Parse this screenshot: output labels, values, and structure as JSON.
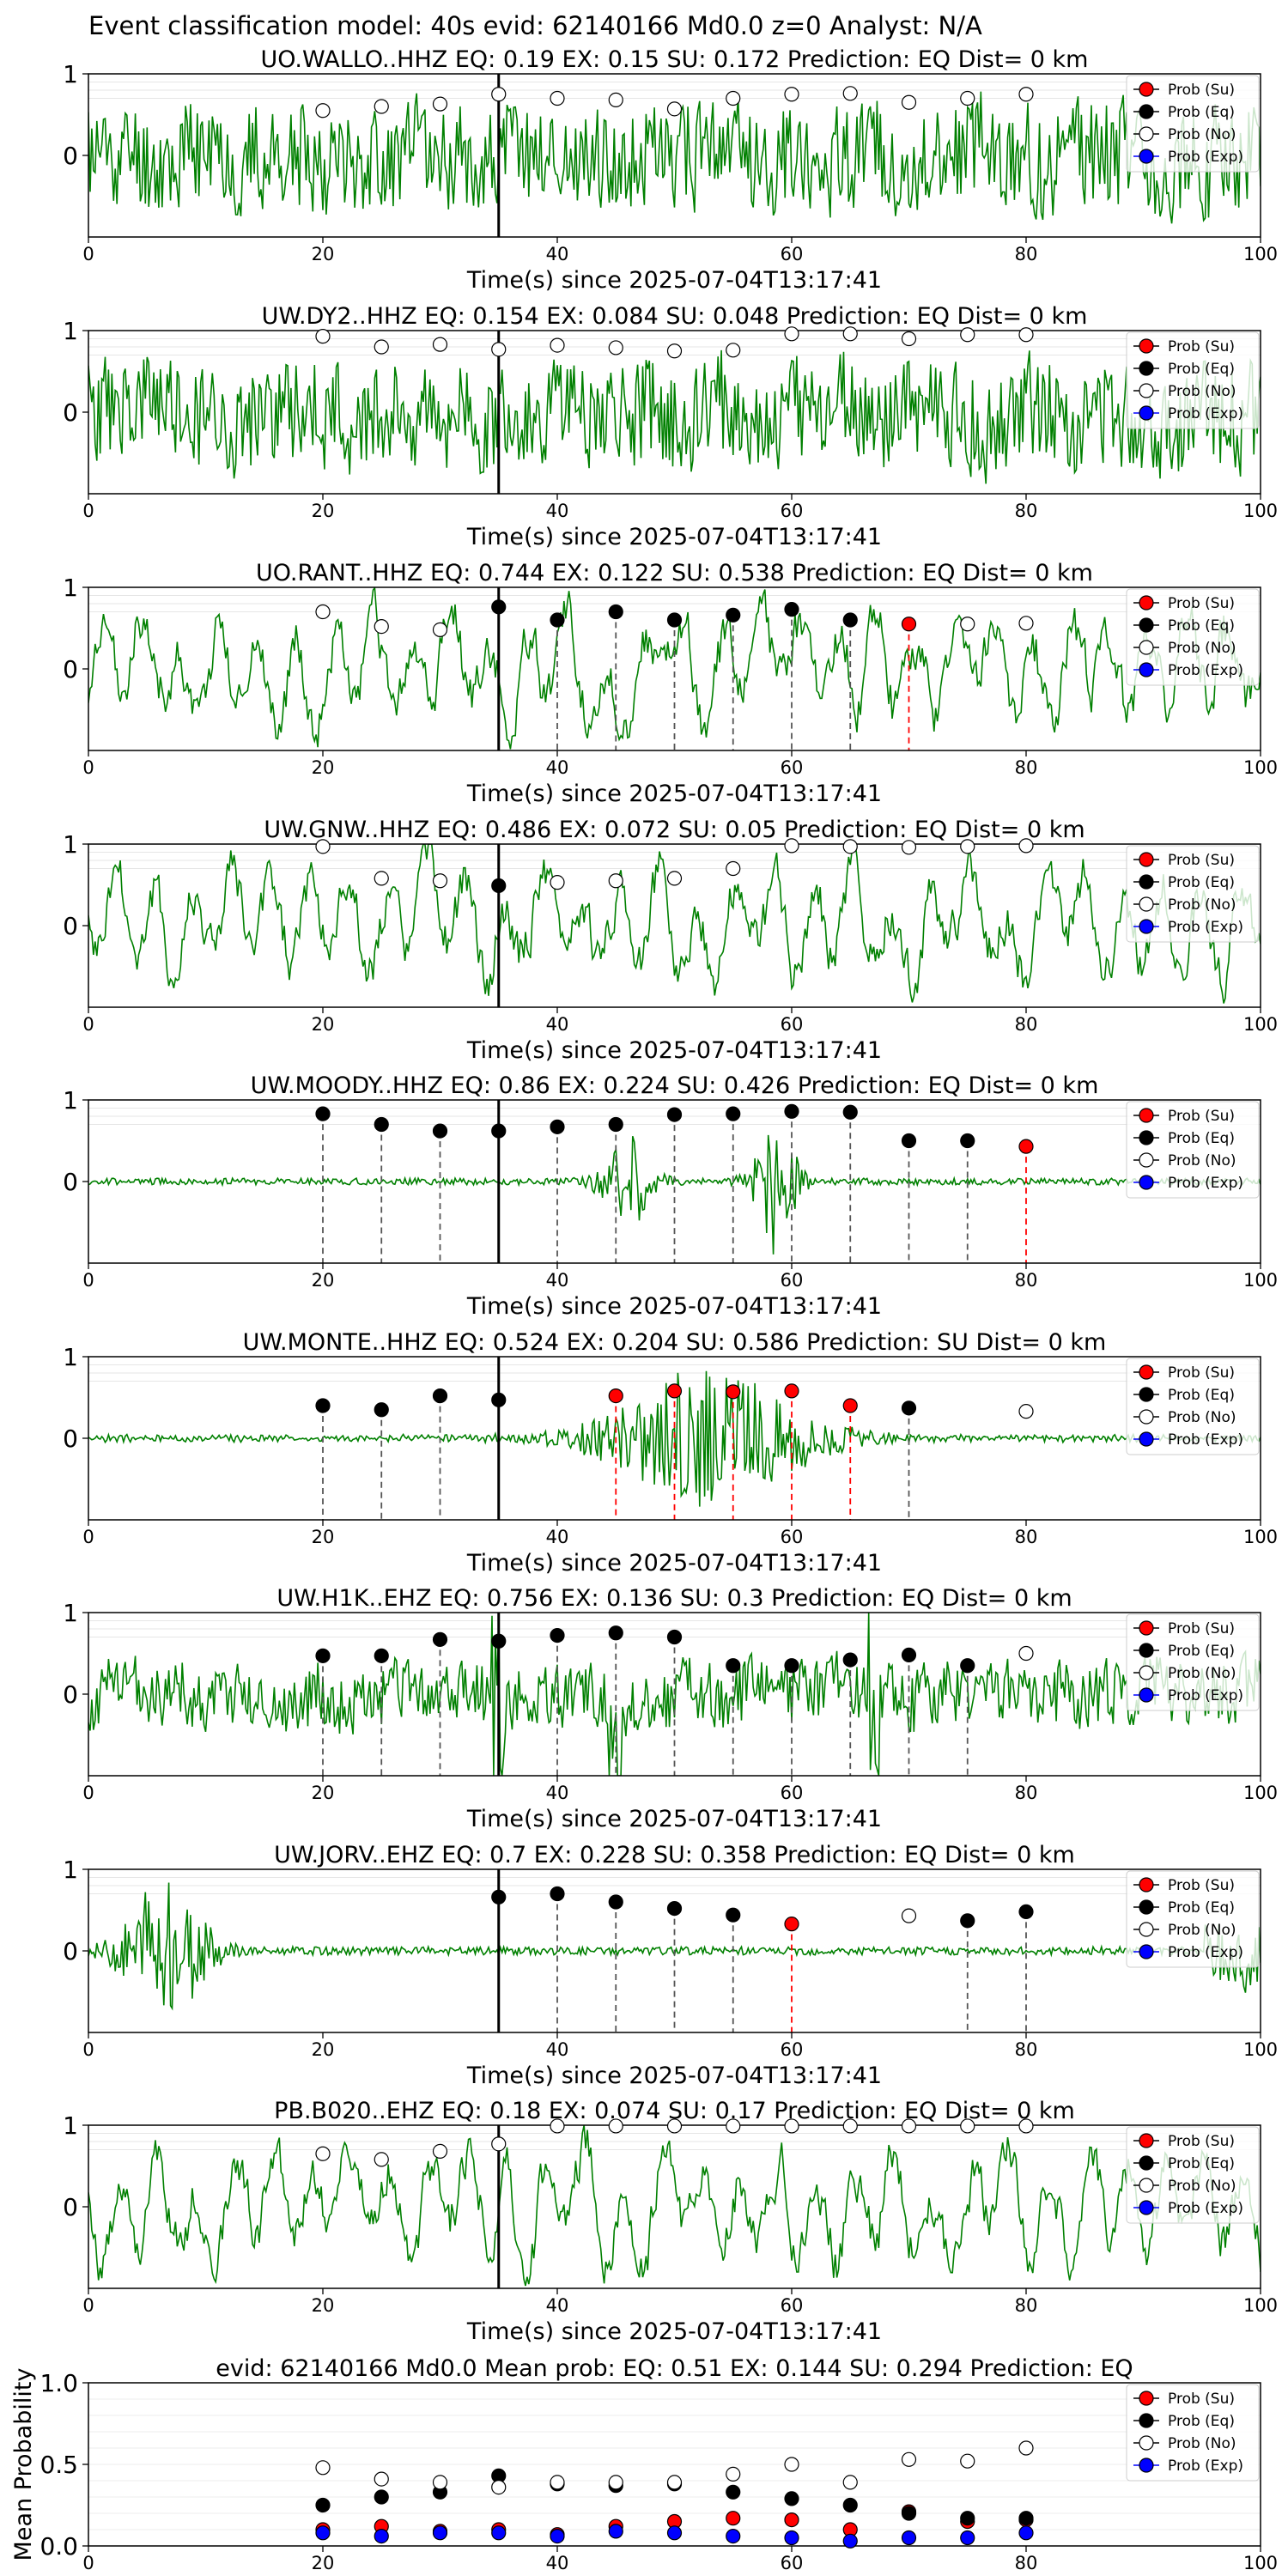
{
  "figure_title": "Event classification model: 40s evid: 62140166 Md0.0 z=0 Analyst: N/A",
  "legend": [
    "Prob (Su)",
    "Prob (Eq)",
    "Prob (No)",
    "Prob (Exp)"
  ],
  "colors": {
    "su": "#ff0000",
    "eq": "#000000",
    "no": "#ffffff",
    "exp": "#0000ff",
    "trace": "#008000",
    "origin_line": "#000000",
    "eq_line": "#555555",
    "su_line": "#ff0000"
  },
  "chart_data": [
    {
      "type": "line",
      "title": "UO.WALLO..HHZ   EQ: 0.19  EX: 0.15  SU: 0.172   Prediction: EQ    Dist= 0 km",
      "xlabel": "Time(s) since 2025-07-04T13:17:41",
      "ylabel": "",
      "xlim": [
        0,
        100
      ],
      "ylim": [
        -1,
        1
      ],
      "x_ticks": [
        "0",
        "20",
        "40",
        "60",
        "80",
        "100"
      ],
      "y_ticks": [
        "0",
        "1"
      ],
      "trace_style": "noise",
      "trace_seed": 11,
      "origin_time": 35,
      "points": [
        {
          "x": 20,
          "y": 0.55,
          "cls": "no"
        },
        {
          "x": 25,
          "y": 0.6,
          "cls": "no"
        },
        {
          "x": 30,
          "y": 0.63,
          "cls": "no"
        },
        {
          "x": 35,
          "y": 0.75,
          "cls": "no"
        },
        {
          "x": 40,
          "y": 0.7,
          "cls": "no"
        },
        {
          "x": 45,
          "y": 0.68,
          "cls": "no"
        },
        {
          "x": 50,
          "y": 0.57,
          "cls": "no"
        },
        {
          "x": 55,
          "y": 0.7,
          "cls": "no"
        },
        {
          "x": 60,
          "y": 0.75,
          "cls": "no"
        },
        {
          "x": 65,
          "y": 0.76,
          "cls": "no"
        },
        {
          "x": 70,
          "y": 0.65,
          "cls": "no"
        },
        {
          "x": 75,
          "y": 0.7,
          "cls": "no"
        },
        {
          "x": 80,
          "y": 0.75,
          "cls": "no"
        }
      ]
    },
    {
      "type": "line",
      "title": "UW.DY2..HHZ   EQ: 0.154  EX: 0.084  SU: 0.048   Prediction: EQ    Dist= 0 km",
      "xlabel": "Time(s) since 2025-07-04T13:17:41",
      "ylabel": "",
      "xlim": [
        0,
        100
      ],
      "ylim": [
        -1,
        1
      ],
      "x_ticks": [
        "0",
        "20",
        "40",
        "60",
        "80",
        "100"
      ],
      "y_ticks": [
        "0",
        "1"
      ],
      "trace_style": "noise",
      "trace_seed": 23,
      "origin_time": 35,
      "points": [
        {
          "x": 20,
          "y": 0.93,
          "cls": "no"
        },
        {
          "x": 25,
          "y": 0.8,
          "cls": "no"
        },
        {
          "x": 30,
          "y": 0.83,
          "cls": "no"
        },
        {
          "x": 35,
          "y": 0.77,
          "cls": "no"
        },
        {
          "x": 40,
          "y": 0.82,
          "cls": "no"
        },
        {
          "x": 45,
          "y": 0.79,
          "cls": "no"
        },
        {
          "x": 50,
          "y": 0.75,
          "cls": "no"
        },
        {
          "x": 55,
          "y": 0.76,
          "cls": "no"
        },
        {
          "x": 60,
          "y": 0.96,
          "cls": "no"
        },
        {
          "x": 65,
          "y": 0.96,
          "cls": "no"
        },
        {
          "x": 70,
          "y": 0.9,
          "cls": "no"
        },
        {
          "x": 75,
          "y": 0.95,
          "cls": "no"
        },
        {
          "x": 80,
          "y": 0.95,
          "cls": "no"
        }
      ]
    },
    {
      "type": "line",
      "title": "UO.RANT..HHZ   EQ: 0.744  EX: 0.122  SU: 0.538   Prediction: EQ    Dist= 0 km",
      "xlabel": "Time(s) since 2025-07-04T13:17:41",
      "ylabel": "",
      "xlim": [
        0,
        100
      ],
      "ylim": [
        -1,
        1
      ],
      "x_ticks": [
        "0",
        "20",
        "40",
        "60",
        "80",
        "100"
      ],
      "y_ticks": [
        "0",
        "1"
      ],
      "trace_style": "wave",
      "trace_seed": 37,
      "origin_time": 35,
      "points": [
        {
          "x": 20,
          "y": 0.7,
          "cls": "no"
        },
        {
          "x": 25,
          "y": 0.52,
          "cls": "no"
        },
        {
          "x": 30,
          "y": 0.48,
          "cls": "no"
        },
        {
          "x": 35,
          "y": 0.76,
          "cls": "eq"
        },
        {
          "x": 40,
          "y": 0.6,
          "cls": "eq"
        },
        {
          "x": 45,
          "y": 0.7,
          "cls": "eq"
        },
        {
          "x": 50,
          "y": 0.6,
          "cls": "eq"
        },
        {
          "x": 55,
          "y": 0.66,
          "cls": "eq"
        },
        {
          "x": 60,
          "y": 0.73,
          "cls": "eq"
        },
        {
          "x": 65,
          "y": 0.6,
          "cls": "eq"
        },
        {
          "x": 70,
          "y": 0.55,
          "cls": "su"
        },
        {
          "x": 75,
          "y": 0.55,
          "cls": "no"
        },
        {
          "x": 80,
          "y": 0.56,
          "cls": "no"
        }
      ]
    },
    {
      "type": "line",
      "title": "UW.GNW..HHZ   EQ: 0.486  EX: 0.072  SU: 0.05   Prediction: EQ    Dist= 0 km",
      "xlabel": "Time(s) since 2025-07-04T13:17:41",
      "ylabel": "",
      "xlim": [
        0,
        100
      ],
      "ylim": [
        -1,
        1
      ],
      "x_ticks": [
        "0",
        "20",
        "40",
        "60",
        "80",
        "100"
      ],
      "y_ticks": [
        "0",
        "1"
      ],
      "trace_style": "wave",
      "trace_seed": 41,
      "origin_time": 35,
      "points": [
        {
          "x": 20,
          "y": 0.97,
          "cls": "no"
        },
        {
          "x": 25,
          "y": 0.58,
          "cls": "no"
        },
        {
          "x": 30,
          "y": 0.55,
          "cls": "no"
        },
        {
          "x": 35,
          "y": 0.49,
          "cls": "eq"
        },
        {
          "x": 40,
          "y": 0.53,
          "cls": "no"
        },
        {
          "x": 45,
          "y": 0.55,
          "cls": "no"
        },
        {
          "x": 50,
          "y": 0.58,
          "cls": "no"
        },
        {
          "x": 55,
          "y": 0.7,
          "cls": "no"
        },
        {
          "x": 60,
          "y": 0.98,
          "cls": "no"
        },
        {
          "x": 65,
          "y": 0.97,
          "cls": "no"
        },
        {
          "x": 70,
          "y": 0.96,
          "cls": "no"
        },
        {
          "x": 75,
          "y": 0.97,
          "cls": "no"
        },
        {
          "x": 80,
          "y": 0.98,
          "cls": "no"
        }
      ]
    },
    {
      "type": "line",
      "title": "UW.MOODY..HHZ   EQ: 0.86  EX: 0.224  SU: 0.426   Prediction: EQ    Dist= 0 km",
      "xlabel": "Time(s) since 2025-07-04T13:17:41",
      "ylabel": "",
      "xlim": [
        0,
        100
      ],
      "ylim": [
        -1,
        1
      ],
      "x_ticks": [
        "0",
        "20",
        "40",
        "60",
        "80",
        "100"
      ],
      "y_ticks": [
        "0",
        "1"
      ],
      "trace_style": "quiet_bursts",
      "trace_seed": 53,
      "origin_time": 35,
      "points": [
        {
          "x": 20,
          "y": 0.83,
          "cls": "eq"
        },
        {
          "x": 25,
          "y": 0.7,
          "cls": "eq"
        },
        {
          "x": 30,
          "y": 0.62,
          "cls": "eq"
        },
        {
          "x": 35,
          "y": 0.62,
          "cls": "eq"
        },
        {
          "x": 40,
          "y": 0.67,
          "cls": "eq"
        },
        {
          "x": 45,
          "y": 0.7,
          "cls": "eq"
        },
        {
          "x": 50,
          "y": 0.82,
          "cls": "eq"
        },
        {
          "x": 55,
          "y": 0.83,
          "cls": "eq"
        },
        {
          "x": 60,
          "y": 0.86,
          "cls": "eq"
        },
        {
          "x": 65,
          "y": 0.85,
          "cls": "eq"
        },
        {
          "x": 70,
          "y": 0.5,
          "cls": "eq"
        },
        {
          "x": 75,
          "y": 0.5,
          "cls": "eq"
        },
        {
          "x": 80,
          "y": 0.43,
          "cls": "su"
        }
      ]
    },
    {
      "type": "line",
      "title": "UW.MONTE..HHZ   EQ: 0.524  EX: 0.204  SU: 0.586   Prediction: SU    Dist= 0 km",
      "xlabel": "Time(s) since 2025-07-04T13:17:41",
      "ylabel": "",
      "xlim": [
        0,
        100
      ],
      "ylim": [
        -1,
        1
      ],
      "x_ticks": [
        "0",
        "20",
        "40",
        "60",
        "80",
        "100"
      ],
      "y_ticks": [
        "0",
        "1"
      ],
      "trace_style": "spindle",
      "trace_seed": 67,
      "origin_time": 35,
      "points": [
        {
          "x": 20,
          "y": 0.4,
          "cls": "eq"
        },
        {
          "x": 25,
          "y": 0.35,
          "cls": "eq"
        },
        {
          "x": 30,
          "y": 0.52,
          "cls": "eq"
        },
        {
          "x": 35,
          "y": 0.47,
          "cls": "eq"
        },
        {
          "x": 45,
          "y": 0.52,
          "cls": "su"
        },
        {
          "x": 50,
          "y": 0.58,
          "cls": "su"
        },
        {
          "x": 55,
          "y": 0.57,
          "cls": "su"
        },
        {
          "x": 60,
          "y": 0.58,
          "cls": "su"
        },
        {
          "x": 65,
          "y": 0.4,
          "cls": "su"
        },
        {
          "x": 70,
          "y": 0.37,
          "cls": "eq"
        },
        {
          "x": 80,
          "y": 0.33,
          "cls": "no"
        }
      ]
    },
    {
      "type": "line",
      "title": "UW.H1K..EHZ   EQ: 0.756  EX: 0.136  SU: 0.3   Prediction: EQ    Dist= 0 km",
      "xlabel": "Time(s) since 2025-07-04T13:17:41",
      "ylabel": "",
      "xlim": [
        0,
        100
      ],
      "ylim": [
        -1,
        1
      ],
      "x_ticks": [
        "0",
        "20",
        "40",
        "60",
        "80",
        "100"
      ],
      "y_ticks": [
        "0",
        "1"
      ],
      "trace_style": "noise_spikes",
      "trace_seed": 71,
      "origin_time": 35,
      "points": [
        {
          "x": 20,
          "y": 0.47,
          "cls": "eq"
        },
        {
          "x": 25,
          "y": 0.47,
          "cls": "eq"
        },
        {
          "x": 30,
          "y": 0.67,
          "cls": "eq"
        },
        {
          "x": 35,
          "y": 0.65,
          "cls": "eq"
        },
        {
          "x": 40,
          "y": 0.72,
          "cls": "eq"
        },
        {
          "x": 45,
          "y": 0.75,
          "cls": "eq"
        },
        {
          "x": 50,
          "y": 0.7,
          "cls": "eq"
        },
        {
          "x": 55,
          "y": 0.35,
          "cls": "eq"
        },
        {
          "x": 60,
          "y": 0.35,
          "cls": "eq"
        },
        {
          "x": 65,
          "y": 0.42,
          "cls": "eq"
        },
        {
          "x": 70,
          "y": 0.48,
          "cls": "eq"
        },
        {
          "x": 75,
          "y": 0.35,
          "cls": "eq"
        },
        {
          "x": 80,
          "y": 0.5,
          "cls": "no"
        }
      ]
    },
    {
      "type": "line",
      "title": "UW.JORV..EHZ   EQ: 0.7  EX: 0.228  SU: 0.358   Prediction: EQ    Dist= 0 km",
      "xlabel": "Time(s) since 2025-07-04T13:17:41",
      "ylabel": "",
      "xlim": [
        0,
        100
      ],
      "ylim": [
        -1,
        1
      ],
      "x_ticks": [
        "0",
        "20",
        "40",
        "60",
        "80",
        "100"
      ],
      "y_ticks": [
        "0",
        "1"
      ],
      "trace_style": "early_burst",
      "trace_seed": 83,
      "origin_time": 35,
      "points": [
        {
          "x": 35,
          "y": 0.66,
          "cls": "eq"
        },
        {
          "x": 40,
          "y": 0.7,
          "cls": "eq"
        },
        {
          "x": 45,
          "y": 0.6,
          "cls": "eq"
        },
        {
          "x": 50,
          "y": 0.52,
          "cls": "eq"
        },
        {
          "x": 55,
          "y": 0.44,
          "cls": "eq"
        },
        {
          "x": 60,
          "y": 0.33,
          "cls": "su"
        },
        {
          "x": 70,
          "y": 0.43,
          "cls": "no"
        },
        {
          "x": 75,
          "y": 0.37,
          "cls": "eq"
        },
        {
          "x": 80,
          "y": 0.48,
          "cls": "eq"
        }
      ]
    },
    {
      "type": "line",
      "title": "PB.B020..EHZ   EQ: 0.18  EX: 0.074  SU: 0.17   Prediction: EQ    Dist= 0 km",
      "xlabel": "Time(s) since 2025-07-04T13:17:41",
      "ylabel": "",
      "xlim": [
        0,
        100
      ],
      "ylim": [
        -1,
        1
      ],
      "x_ticks": [
        "0",
        "20",
        "40",
        "60",
        "80",
        "100"
      ],
      "y_ticks": [
        "0",
        "1"
      ],
      "trace_style": "wave",
      "trace_seed": 97,
      "origin_time": 35,
      "points": [
        {
          "x": 20,
          "y": 0.65,
          "cls": "no"
        },
        {
          "x": 25,
          "y": 0.58,
          "cls": "no"
        },
        {
          "x": 30,
          "y": 0.68,
          "cls": "no"
        },
        {
          "x": 35,
          "y": 0.77,
          "cls": "no"
        },
        {
          "x": 40,
          "y": 0.99,
          "cls": "no"
        },
        {
          "x": 45,
          "y": 0.99,
          "cls": "no"
        },
        {
          "x": 50,
          "y": 0.99,
          "cls": "no"
        },
        {
          "x": 55,
          "y": 0.99,
          "cls": "no"
        },
        {
          "x": 60,
          "y": 0.99,
          "cls": "no"
        },
        {
          "x": 65,
          "y": 0.99,
          "cls": "no"
        },
        {
          "x": 70,
          "y": 0.99,
          "cls": "no"
        },
        {
          "x": 75,
          "y": 0.99,
          "cls": "no"
        },
        {
          "x": 80,
          "y": 0.99,
          "cls": "no"
        }
      ]
    },
    {
      "type": "scatter",
      "title": "evid: 62140166  Md0.0   Mean prob:   EQ: 0.51  EX: 0.144  SU: 0.294   Prediction: EQ",
      "xlabel": "",
      "ylabel": "Mean Probability",
      "xlim": [
        0,
        100
      ],
      "ylim": [
        0,
        1
      ],
      "x_ticks": [
        "0",
        "20",
        "40",
        "60",
        "80",
        "100"
      ],
      "y_ticks": [
        "0.0",
        "0.5",
        "1.0"
      ],
      "x": [
        20,
        25,
        30,
        35,
        40,
        45,
        50,
        55,
        60,
        65,
        70,
        75,
        80
      ],
      "series": [
        {
          "name": "Prob (Su)",
          "cls": "su",
          "values": [
            0.1,
            0.12,
            0.09,
            0.1,
            0.07,
            0.12,
            0.15,
            0.17,
            0.16,
            0.1,
            0.21,
            0.15,
            0.16
          ]
        },
        {
          "name": "Prob (Eq)",
          "cls": "eq",
          "values": [
            0.25,
            0.3,
            0.33,
            0.43,
            0.38,
            0.37,
            0.38,
            0.33,
            0.29,
            0.25,
            0.2,
            0.17,
            0.17
          ]
        },
        {
          "name": "Prob (No)",
          "cls": "no",
          "values": [
            0.48,
            0.41,
            0.39,
            0.36,
            0.39,
            0.39,
            0.39,
            0.44,
            0.5,
            0.39,
            0.53,
            0.52,
            0.6
          ]
        },
        {
          "name": "Prob (Exp)",
          "cls": "exp",
          "values": [
            0.08,
            0.06,
            0.08,
            0.08,
            0.06,
            0.09,
            0.08,
            0.06,
            0.05,
            0.03,
            0.05,
            0.05,
            0.08
          ]
        }
      ]
    }
  ]
}
